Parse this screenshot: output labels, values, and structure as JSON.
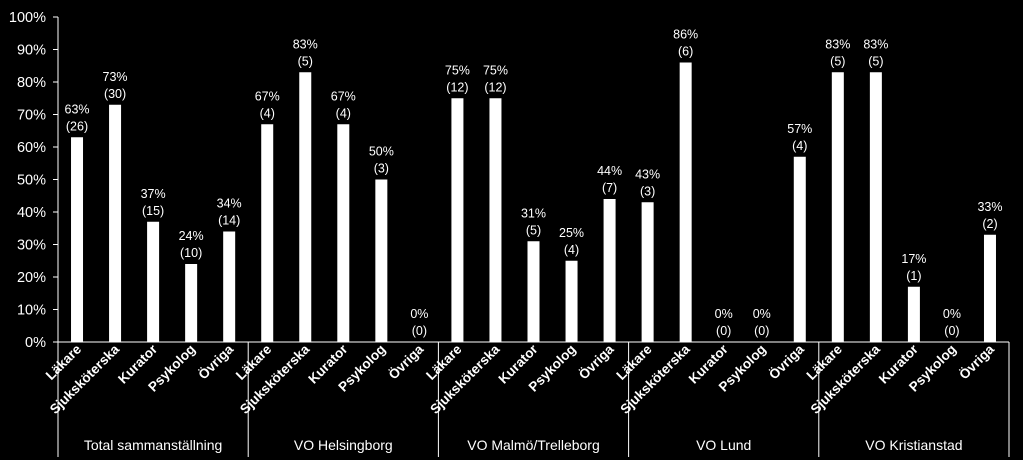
{
  "chart_data": {
    "type": "bar",
    "ylim": [
      0,
      100
    ],
    "yticks": [
      "0%",
      "10%",
      "20%",
      "30%",
      "40%",
      "50%",
      "60%",
      "70%",
      "80%",
      "90%",
      "100%"
    ],
    "grid": false,
    "colors": {
      "background": "#000000",
      "bar_fill": "#ffffff",
      "text": "#ffffff",
      "axis": "#ffffff"
    },
    "groups": [
      {
        "name": "Total sammanställning",
        "categories": [
          "Läkare",
          "Sjuksköterska",
          "Kurator",
          "Psykolog",
          "Övriga"
        ],
        "values": [
          63,
          73,
          37,
          24,
          34
        ],
        "labels": [
          "63%",
          "73%",
          "37%",
          "24%",
          "34%"
        ],
        "counts": [
          "(26)",
          "(30)",
          "(15)",
          "(10)",
          "(14)"
        ]
      },
      {
        "name": "VO Helsingborg",
        "categories": [
          "Läkare",
          "Sjuksköterska",
          "Kurator",
          "Psykolog",
          "Övriga"
        ],
        "values": [
          67,
          83,
          67,
          50,
          0
        ],
        "labels": [
          "67%",
          "83%",
          "67%",
          "50%",
          "0%"
        ],
        "counts": [
          "(4)",
          "(5)",
          "(4)",
          "(3)",
          "(0)"
        ]
      },
      {
        "name": "VO Malmö/Trelleborg",
        "categories": [
          "Läkare",
          "Sjuksköterska",
          "Kurator",
          "Psykolog",
          "Övriga"
        ],
        "values": [
          75,
          75,
          31,
          25,
          44
        ],
        "labels": [
          "75%",
          "75%",
          "31%",
          "25%",
          "44%"
        ],
        "counts": [
          "(12)",
          "(12)",
          "(5)",
          "(4)",
          "(7)"
        ]
      },
      {
        "name": "VO Lund",
        "categories": [
          "Läkare",
          "Sjuksköterska",
          "Kurator",
          "Psykolog",
          "Övriga"
        ],
        "values": [
          43,
          86,
          0,
          0,
          57
        ],
        "labels": [
          "43%",
          "86%",
          "0%",
          "0%",
          "57%"
        ],
        "counts": [
          "(3)",
          "(6)",
          "(0)",
          "(0)",
          "(4)"
        ]
      },
      {
        "name": "VO Kristianstad",
        "categories": [
          "Läkare",
          "Sjuksköterska",
          "Kurator",
          "Psykolog",
          "Övriga"
        ],
        "values": [
          83,
          83,
          17,
          0,
          33
        ],
        "labels": [
          "83%",
          "83%",
          "17%",
          "0%",
          "33%"
        ],
        "counts": [
          "(5)",
          "(5)",
          "(1)",
          "(0)",
          "(2)"
        ]
      }
    ]
  }
}
